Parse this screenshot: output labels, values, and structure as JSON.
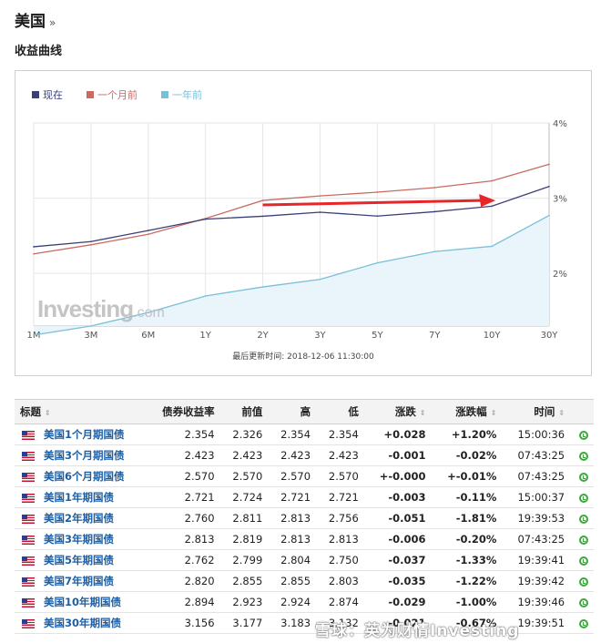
{
  "header": {
    "title": "美国",
    "raquo": "»",
    "subtitle": "收益曲线"
  },
  "chart_data": {
    "type": "line",
    "categories": [
      "1M",
      "3M",
      "6M",
      "1Y",
      "2Y",
      "3Y",
      "5Y",
      "7Y",
      "10Y",
      "30Y"
    ],
    "y_ticks": [
      "2%",
      "3%",
      "4%"
    ],
    "ylim": [
      1.3,
      4.0
    ],
    "series": [
      {
        "name": "现在",
        "color": "#3b3f78",
        "values": [
          2.354,
          2.423,
          2.57,
          2.721,
          2.76,
          2.813,
          2.762,
          2.82,
          2.894,
          3.156
        ]
      },
      {
        "name": "一个月前",
        "color": "#c96b62",
        "values": [
          2.26,
          2.38,
          2.52,
          2.73,
          2.97,
          3.03,
          3.08,
          3.14,
          3.23,
          3.45
        ]
      },
      {
        "name": "一年前",
        "color": "#79bfd8",
        "values": [
          1.18,
          1.3,
          1.48,
          1.7,
          1.82,
          1.92,
          2.14,
          2.29,
          2.36,
          2.77
        ]
      }
    ],
    "annotation": "red arrow",
    "updated": "最后更新时间: 2018-12-06 11:30:00",
    "watermark": "Investing",
    "watermark_suffix": ".com"
  },
  "table": {
    "headers": {
      "name": "标题",
      "yield": "债券收益率",
      "prev": "前值",
      "high": "高",
      "low": "低",
      "chg": "涨跌",
      "chgpct": "涨跌幅",
      "time": "时间"
    },
    "sort_icon": "⇕",
    "rows": [
      {
        "name": "美国1个月期国债",
        "yield": "2.354",
        "prev": "2.326",
        "high": "2.354",
        "low": "2.354",
        "chg": "+0.028",
        "chgpct": "+1.20%",
        "time": "15:00:36",
        "dir": "pos"
      },
      {
        "name": "美国3个月期国债",
        "yield": "2.423",
        "prev": "2.423",
        "high": "2.423",
        "low": "2.423",
        "chg": "-0.001",
        "chgpct": "-0.02%",
        "time": "07:43:25",
        "dir": "neg"
      },
      {
        "name": "美国6个月期国债",
        "yield": "2.570",
        "prev": "2.570",
        "high": "2.570",
        "low": "2.570",
        "chg": "+-0.000",
        "chgpct": "+-0.01%",
        "time": "07:43:25",
        "dir": "pos"
      },
      {
        "name": "美国1年期国债",
        "yield": "2.721",
        "prev": "2.724",
        "high": "2.721",
        "low": "2.721",
        "chg": "-0.003",
        "chgpct": "-0.11%",
        "time": "15:00:37",
        "dir": "neg"
      },
      {
        "name": "美国2年期国债",
        "yield": "2.760",
        "prev": "2.811",
        "high": "2.813",
        "low": "2.756",
        "chg": "-0.051",
        "chgpct": "-1.81%",
        "time": "19:39:53",
        "dir": "neg"
      },
      {
        "name": "美国3年期国债",
        "yield": "2.813",
        "prev": "2.819",
        "high": "2.813",
        "low": "2.813",
        "chg": "-0.006",
        "chgpct": "-0.20%",
        "time": "07:43:25",
        "dir": "neg"
      },
      {
        "name": "美国5年期国债",
        "yield": "2.762",
        "prev": "2.799",
        "high": "2.804",
        "low": "2.750",
        "chg": "-0.037",
        "chgpct": "-1.33%",
        "time": "19:39:41",
        "dir": "neg"
      },
      {
        "name": "美国7年期国债",
        "yield": "2.820",
        "prev": "2.855",
        "high": "2.855",
        "low": "2.803",
        "chg": "-0.035",
        "chgpct": "-1.22%",
        "time": "19:39:42",
        "dir": "neg"
      },
      {
        "name": "美国10年期国债",
        "yield": "2.894",
        "prev": "2.923",
        "high": "2.924",
        "low": "2.874",
        "chg": "-0.029",
        "chgpct": "-1.00%",
        "time": "19:39:46",
        "dir": "neg"
      },
      {
        "name": "美国30年期国债",
        "yield": "3.156",
        "prev": "3.177",
        "high": "3.183",
        "low": "3.132",
        "chg": "-0.021",
        "chgpct": "-0.67%",
        "time": "19:39:51",
        "dir": "neg"
      }
    ]
  },
  "overlay": {
    "text": "雪球：英为财情Investing"
  },
  "colors": {
    "accent_up": "#e0001b",
    "accent_down": "#1a9e2a",
    "link": "#1b5fa6",
    "fill": "#eaf4fb"
  }
}
